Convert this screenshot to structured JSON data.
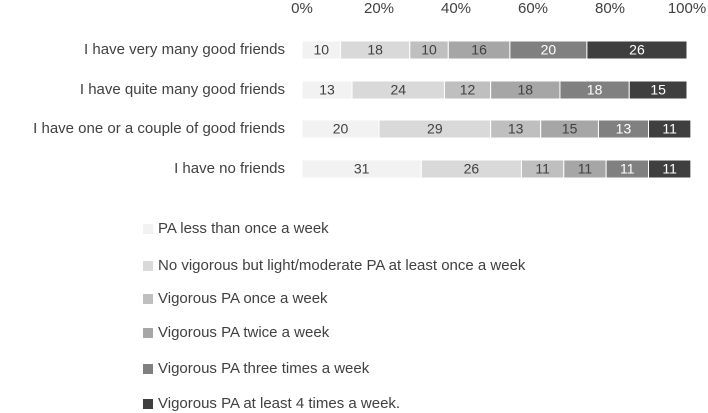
{
  "chart_data": {
    "type": "stacked-bar-horizontal",
    "categories": [
      "I have very many good friends",
      "I have quite many good friends",
      "I have one or a couple of good friends",
      "I have no friends"
    ],
    "series": [
      {
        "name": "PA less than once a week",
        "color": "#f2f2f2",
        "values": [
          10,
          13,
          20,
          31
        ]
      },
      {
        "name": "No vigorous but light/moderate PA at least once a week",
        "color": "#d9d9d9",
        "values": [
          18,
          24,
          29,
          26
        ]
      },
      {
        "name": "Vigorous PA once a week",
        "color": "#bfbfbf",
        "values": [
          10,
          12,
          13,
          11
        ]
      },
      {
        "name": "Vigorous PA twice a week",
        "color": "#a6a6a6",
        "values": [
          16,
          18,
          15,
          11
        ]
      },
      {
        "name": "Vigorous PA three times a week",
        "color": "#808080",
        "values": [
          20,
          18,
          13,
          11
        ]
      },
      {
        "name": "Vigorous PA at least 4 times a week.",
        "color": "#3f3f3f",
        "values": [
          26,
          15,
          11,
          11
        ]
      }
    ],
    "xlim": [
      0,
      100
    ],
    "xticks": [
      {
        "value": 0,
        "label": "0%"
      },
      {
        "value": 20,
        "label": "20%"
      },
      {
        "value": 40,
        "label": "40%"
      },
      {
        "value": 60,
        "label": "60%"
      },
      {
        "value": 80,
        "label": "80%"
      },
      {
        "value": 100,
        "label": "100%"
      }
    ]
  }
}
